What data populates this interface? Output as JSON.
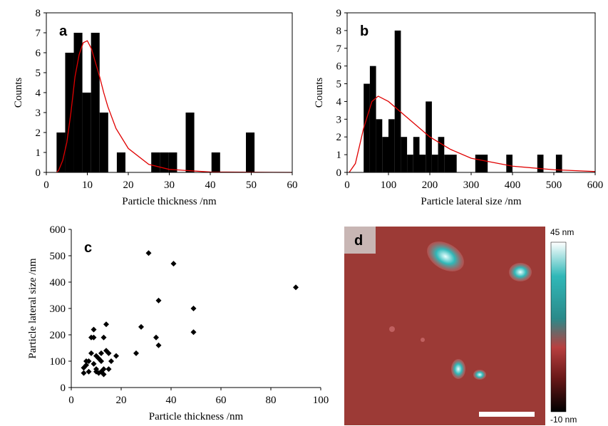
{
  "chart_data": [
    {
      "type": "histogram",
      "label": "a",
      "xlabel": "Particle thickness /nm",
      "ylabel": "Counts",
      "xlim": [
        0,
        60
      ],
      "xticks": [
        0,
        10,
        20,
        30,
        40,
        50,
        60
      ],
      "ylim": [
        0,
        8
      ],
      "yticks": [
        0,
        1,
        2,
        3,
        4,
        5,
        6,
        7,
        8
      ],
      "color": "#000000",
      "bins": [
        2.5,
        4.6,
        6.7,
        8.8,
        10.9,
        13.0,
        15.1,
        17.2,
        19.3,
        21.4,
        23.5,
        25.6,
        27.7,
        29.8,
        31.9,
        34.0,
        36.1,
        38.2,
        40.3,
        42.4,
        44.5,
        46.6,
        48.7,
        50.8
      ],
      "counts": [
        2,
        6,
        7,
        4,
        7,
        3,
        0,
        1,
        0,
        0,
        0,
        1,
        1,
        1,
        0,
        3,
        0,
        0,
        1,
        0,
        0,
        0,
        2
      ],
      "fit": {
        "color": "#e00000",
        "x": [
          2.5,
          3,
          4,
          5,
          6,
          7,
          8,
          9,
          10,
          11,
          12,
          13,
          14,
          15,
          17,
          20,
          25,
          30,
          40,
          60
        ],
        "values": [
          0,
          0.1,
          0.6,
          1.5,
          3.0,
          4.8,
          5.9,
          6.5,
          6.6,
          6.2,
          5.5,
          4.8,
          4.0,
          3.3,
          2.2,
          1.2,
          0.4,
          0.15,
          0.02,
          0
        ]
      }
    },
    {
      "type": "histogram",
      "label": "b",
      "xlabel": "Particle lateral size /nm",
      "ylabel": "Counts",
      "xlim": [
        0,
        600
      ],
      "xticks": [
        0,
        100,
        200,
        300,
        400,
        500,
        600
      ],
      "ylim": [
        0,
        9
      ],
      "yticks": [
        0,
        1,
        2,
        3,
        4,
        5,
        6,
        7,
        8,
        9
      ],
      "color": "#000000",
      "bins": [
        40,
        55,
        70,
        85,
        100,
        115,
        130,
        145,
        160,
        175,
        190,
        205,
        220,
        235,
        250,
        265,
        280,
        295,
        310,
        325,
        340,
        355,
        370,
        385,
        400,
        415,
        430,
        445,
        460,
        475,
        490,
        505,
        520
      ],
      "counts": [
        5,
        6,
        3,
        2,
        3,
        8,
        2,
        1,
        2,
        1,
        4,
        1,
        2,
        1,
        1,
        0,
        0,
        0,
        1,
        1,
        0,
        0,
        0,
        1,
        0,
        0,
        0,
        0,
        1,
        0,
        0,
        1
      ],
      "fit": {
        "color": "#e00000",
        "x": [
          5,
          20,
          40,
          60,
          75,
          100,
          150,
          200,
          250,
          300,
          400,
          500,
          600
        ],
        "values": [
          0,
          0.5,
          2.5,
          4.0,
          4.3,
          4.0,
          3.0,
          2.0,
          1.3,
          0.8,
          0.35,
          0.15,
          0.05
        ]
      }
    },
    {
      "type": "scatter",
      "label": "c",
      "xlabel": "Particle thickness /nm",
      "ylabel": "Particle lateral size /nm",
      "xlim": [
        0,
        100
      ],
      "xticks": [
        0,
        20,
        40,
        60,
        80,
        100
      ],
      "ylim": [
        0,
        600
      ],
      "yticks": [
        0,
        100,
        200,
        300,
        400,
        500,
        600
      ],
      "color": "#000000",
      "x": [
        5,
        5,
        6,
        7,
        7,
        8,
        8,
        9,
        9,
        9,
        10,
        10,
        11,
        11,
        12,
        12,
        13,
        13,
        14,
        14,
        15,
        15,
        16,
        18,
        26,
        28,
        31,
        34,
        35,
        35,
        41,
        49,
        49,
        90,
        6,
        10,
        12,
        13
      ],
      "values": [
        55,
        75,
        85,
        100,
        60,
        130,
        190,
        190,
        220,
        90,
        70,
        120,
        110,
        55,
        130,
        60,
        70,
        190,
        140,
        240,
        70,
        130,
        100,
        120,
        130,
        230,
        510,
        190,
        330,
        160,
        470,
        300,
        210,
        380,
        100,
        60,
        100,
        50
      ]
    }
  ],
  "image": {
    "label": "d",
    "colorbar_max": "45 nm",
    "colorbar_min": "-10 nm"
  }
}
